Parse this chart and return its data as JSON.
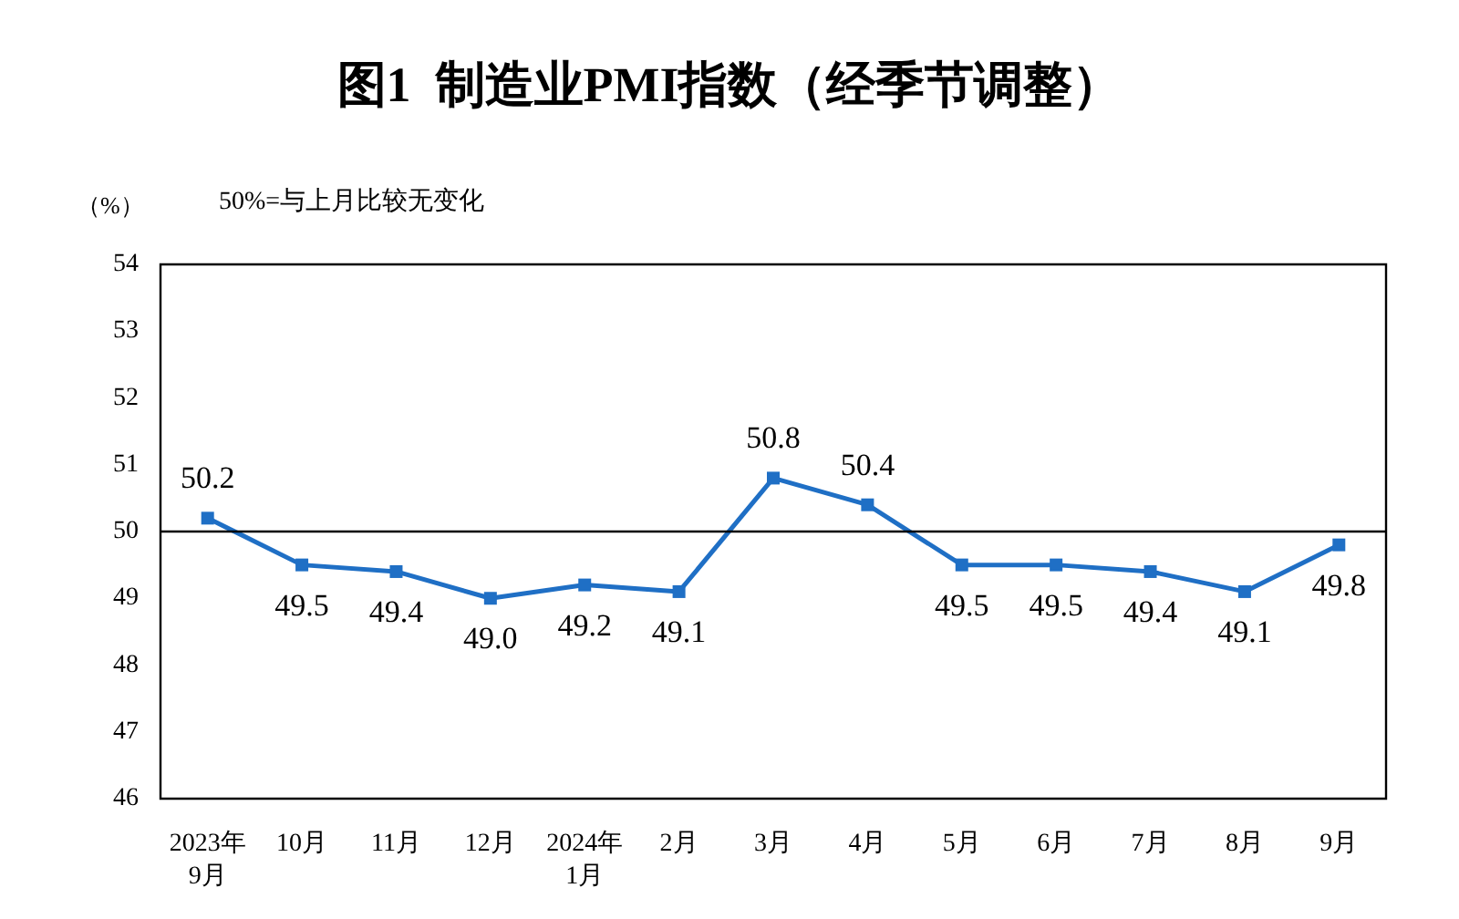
{
  "chart_data": {
    "type": "line",
    "title": "图1  制造业PMI指数（经季节调整）",
    "ylabel": "（%）",
    "annotations": [
      "50%=与上月比较无变化"
    ],
    "categories": [
      "2023年\n9月",
      "10月",
      "11月",
      "12月",
      "2024年\n1月",
      "2月",
      "3月",
      "4月",
      "5月",
      "6月",
      "7月",
      "8月",
      "9月"
    ],
    "series": [
      {
        "color": "#1f6fc5",
        "values": [
          50.2,
          49.5,
          49.4,
          49.0,
          49.2,
          49.1,
          50.8,
          50.4,
          49.5,
          49.5,
          49.4,
          49.1,
          49.8
        ],
        "value_labels": [
          "50.2",
          "49.5",
          "49.4",
          "49.0",
          "49.2",
          "49.1",
          "50.8",
          "50.4",
          "49.5",
          "49.5",
          "49.4",
          "49.1",
          "49.8"
        ]
      }
    ],
    "ylim": [
      46,
      54
    ],
    "yticks": [
      46,
      47,
      48,
      49,
      50,
      51,
      52,
      53,
      54
    ],
    "ref_lines": [
      {
        "axis": "y",
        "value": 50,
        "color": "#000000"
      }
    ],
    "grid": false,
    "marker": "square",
    "line_style": "solid"
  }
}
